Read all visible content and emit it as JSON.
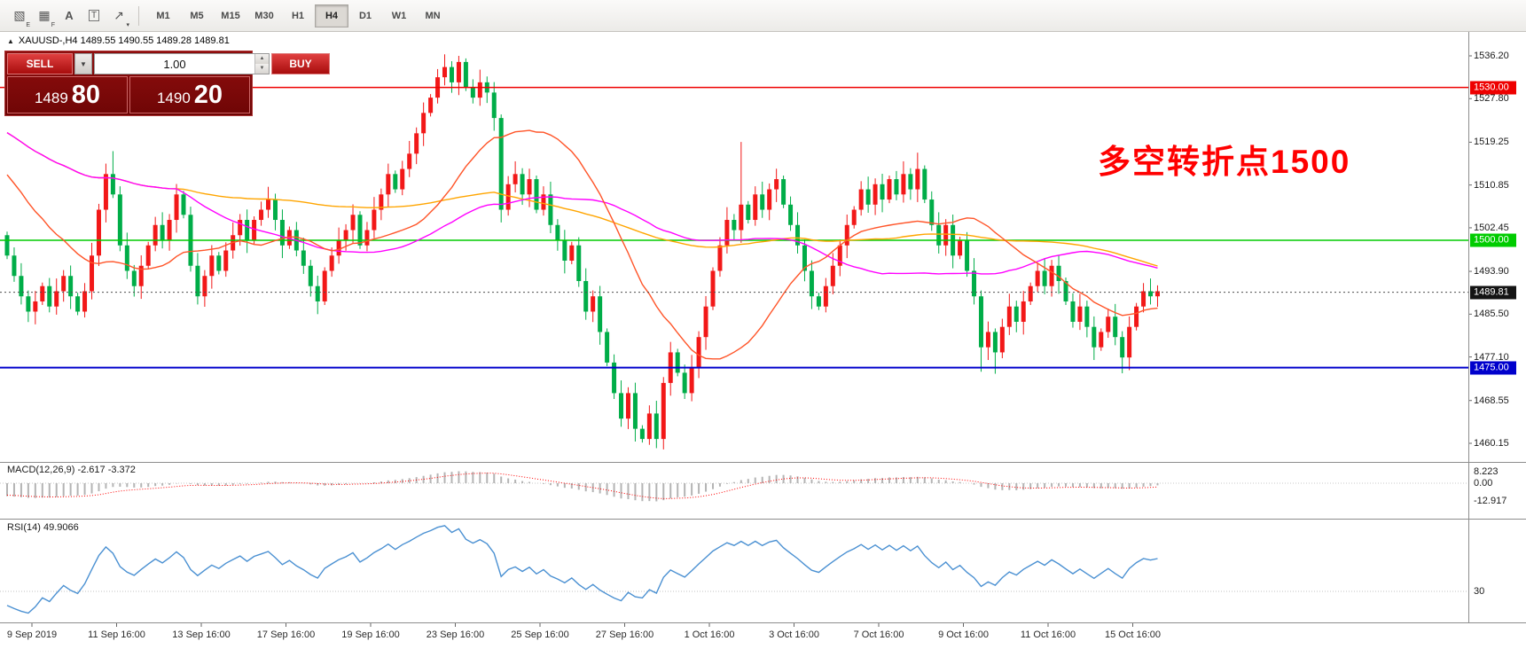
{
  "toolbar": {
    "icons": [
      {
        "name": "hatch-pattern-icon",
        "glyph": "▧",
        "sub": "E"
      },
      {
        "name": "grid-list-icon",
        "glyph": "▦",
        "sub": "F"
      },
      {
        "name": "text-label-icon",
        "glyph": "A",
        "sub": ""
      },
      {
        "name": "text-box-icon",
        "glyph": "T",
        "sub": ""
      },
      {
        "name": "arrow-tool-icon",
        "glyph": "↗",
        "sub": "▾"
      }
    ],
    "timeframes": [
      "M1",
      "M5",
      "M15",
      "M30",
      "H1",
      "H4",
      "D1",
      "W1",
      "MN"
    ],
    "active_timeframe": "H4"
  },
  "chart": {
    "symbol_label": "XAUUSD-,H4  1489.55 1490.55 1489.28 1489.81",
    "annotation": "多空转折点1500"
  },
  "trade_panel": {
    "sell_label": "SELL",
    "buy_label": "BUY",
    "volume": "1.00",
    "sell_price_main": "1489",
    "sell_price_pips": "80",
    "buy_price_main": "1490",
    "buy_price_pips": "20"
  },
  "chart_data": {
    "type": "candlestick",
    "symbol": "XAUUSD-",
    "timeframe": "H4",
    "ylim": [
      1457,
      1540.5
    ],
    "price_ticks": [
      "1536.20",
      "1527.80",
      "1519.25",
      "1510.85",
      "1502.45",
      "1493.90",
      "1485.50",
      "1477.10",
      "1468.55",
      "1460.15"
    ],
    "levels": [
      {
        "price": 1530.0,
        "label": "1530.00",
        "color": "#ee0000"
      },
      {
        "price": 1500.0,
        "label": "1500.00",
        "color": "#00cc00"
      },
      {
        "price": 1475.0,
        "label": "1475.00",
        "color": "#0000cc"
      }
    ],
    "current_price": {
      "price": 1489.81,
      "label": "1489.81",
      "label_bg": "#141414"
    },
    "x_labels": [
      "9 Sep 2019",
      "11 Sep 16:00",
      "13 Sep 16:00",
      "17 Sep 16:00",
      "19 Sep 16:00",
      "23 Sep 16:00",
      "25 Sep 16:00",
      "27 Sep 16:00",
      "1 Oct 16:00",
      "3 Oct 16:00",
      "7 Oct 16:00",
      "9 Oct 16:00",
      "11 Oct 16:00",
      "15 Oct 16:00"
    ],
    "up_color": "#f21818",
    "down_color": "#00ad48",
    "first_open": 1501,
    "closes": [
      1497,
      1493,
      1489,
      1486,
      1488,
      1491,
      1487,
      1490,
      1493,
      1489,
      1486,
      1490,
      1497,
      1506,
      1513,
      1509,
      1499,
      1494,
      1491,
      1495,
      1499,
      1503,
      1500,
      1504,
      1509,
      1505,
      1495,
      1489,
      1493,
      1497,
      1494,
      1498,
      1501,
      1504,
      1500,
      1504,
      1506,
      1508,
      1504,
      1499,
      1502,
      1498,
      1495,
      1491,
      1488,
      1494,
      1497,
      1500,
      1502,
      1505,
      1499,
      1502,
      1506,
      1509,
      1513,
      1510,
      1514,
      1517,
      1521,
      1525,
      1528,
      1532,
      1534,
      1531,
      1535,
      1530,
      1528,
      1531,
      1529,
      1524,
      1506,
      1511,
      1513,
      1509,
      1512,
      1506,
      1509,
      1503,
      1500,
      1496,
      1499,
      1492,
      1486,
      1489,
      1482,
      1476,
      1470,
      1465,
      1470,
      1463,
      1461,
      1466,
      1461,
      1472,
      1478,
      1474,
      1470,
      1475,
      1481,
      1487,
      1494,
      1499,
      1504,
      1502,
      1507,
      1504,
      1509,
      1506,
      1510,
      1512,
      1507,
      1503,
      1499,
      1494,
      1489,
      1487,
      1491,
      1495,
      1499,
      1503,
      1506,
      1510,
      1507,
      1511,
      1508,
      1512,
      1509,
      1513,
      1510,
      1514,
      1508,
      1503,
      1499,
      1503,
      1497,
      1500,
      1494,
      1489,
      1479,
      1482,
      1478,
      1483,
      1487,
      1484,
      1488,
      1491,
      1494,
      1491,
      1495,
      1492,
      1488,
      1484,
      1487,
      1483,
      1479,
      1482,
      1485,
      1481,
      1477,
      1483,
      1487,
      1490,
      1489,
      1490
    ],
    "pre_closes": [
      1546,
      1544,
      1541,
      1543,
      1539,
      1536,
      1538,
      1534,
      1531,
      1533,
      1529,
      1526,
      1528,
      1524,
      1521,
      1523,
      1519,
      1516,
      1518,
      1514,
      1511,
      1513,
      1509,
      1506,
      1508,
      1504,
      1502,
      1504,
      1500,
      1498
    ],
    "wick_extremes": {
      "15": {
        "h": 1517.5
      },
      "64": {
        "h": 1536.2
      },
      "70": {
        "l": 1503.5
      },
      "92": {
        "l": 1459.2
      },
      "104": {
        "h": 1519.3
      },
      "129": {
        "h": 1517.2
      },
      "138": {
        "l": 1474.2
      },
      "140": {
        "l": 1473.8
      },
      "158": {
        "l": 1473.9
      }
    },
    "ma_lines": [
      {
        "period": 21,
        "color": "#ff5428"
      },
      {
        "period": 55,
        "color": "#ff00ff"
      },
      {
        "period": 100,
        "color": "#ffa500"
      }
    ],
    "indicators": {
      "macd": {
        "label": "MACD(12,26,9) -2.617 -3.372",
        "ticks": [
          "8.223",
          "0.00",
          "-12.917"
        ],
        "histogram_color": "#b4b4b4",
        "signal_color": "#ff0000"
      },
      "rsi": {
        "label": "RSI(14) 49.9066",
        "level_label": "30",
        "level_value": 30,
        "line_color": "#4a90d2"
      }
    }
  }
}
